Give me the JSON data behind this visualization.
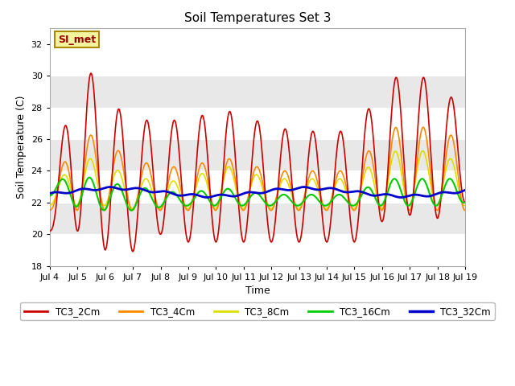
{
  "title": "Soil Temperatures Set 3",
  "xlabel": "Time",
  "ylabel": "Soil Temperature (C)",
  "ylim": [
    18,
    33
  ],
  "xlim": [
    0,
    15
  ],
  "xtick_labels": [
    "Jul 4",
    "Jul 5",
    "Jul 6",
    "Jul 7",
    "Jul 8",
    "Jul 9",
    "Jul 10",
    "Jul 11",
    "Jul 12",
    "Jul 13",
    "Jul 14",
    "Jul 15",
    "Jul 16",
    "Jul 17",
    "Jul 18",
    "Jul 19"
  ],
  "ytick_values": [
    18,
    20,
    22,
    24,
    26,
    28,
    30,
    32
  ],
  "series_colors": [
    "#cc0000",
    "#ff8800",
    "#dddd00",
    "#00cc00",
    "#0000cc"
  ],
  "series_names": [
    "TC3_2Cm",
    "TC3_4Cm",
    "TC3_8Cm",
    "TC3_16Cm",
    "TC3_32Cm"
  ],
  "series_widths": [
    1.2,
    1.2,
    1.2,
    1.5,
    2.0
  ],
  "annotation_text": "SI_met",
  "bg_color": "#ffffff",
  "plot_bg_color": "#ffffff",
  "title_fontsize": 11,
  "axis_fontsize": 9,
  "tick_fontsize": 8
}
